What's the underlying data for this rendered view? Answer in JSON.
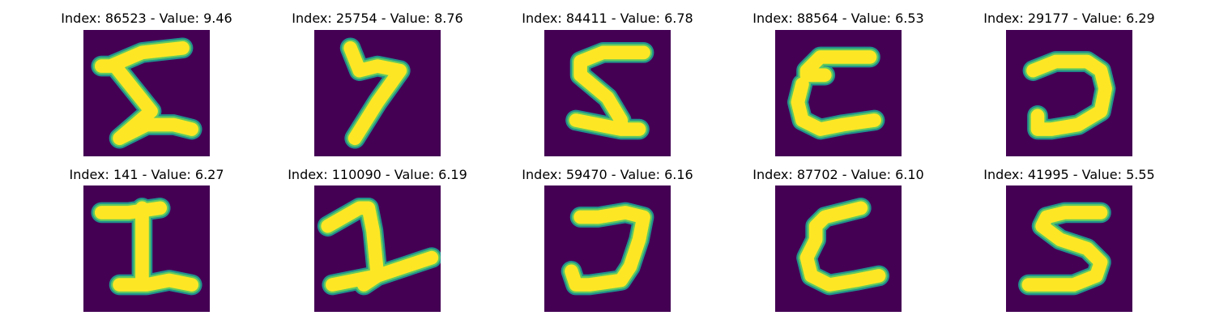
{
  "colors": {
    "background": "#440154",
    "stroke_edge": "#21918c",
    "stroke_mid": "#5ec962",
    "stroke_core": "#fde725"
  },
  "panels": [
    {
      "title": "Index: 86523 - Value: 9.46",
      "index": 86523,
      "value": 9.46
    },
    {
      "title": "Index: 25754 - Value: 8.76",
      "index": 25754,
      "value": 8.76
    },
    {
      "title": "Index: 84411 - Value: 6.78",
      "index": 84411,
      "value": 6.78
    },
    {
      "title": "Index: 88564 - Value: 6.53",
      "index": 88564,
      "value": 6.53
    },
    {
      "title": "Index: 29177 - Value: 6.29",
      "index": 29177,
      "value": 6.29
    },
    {
      "title": "Index: 141 - Value: 6.27",
      "index": 141,
      "value": 6.27
    },
    {
      "title": "Index: 110090 - Value: 6.19",
      "index": 110090,
      "value": 6.19
    },
    {
      "title": "Index: 59470 - Value: 6.16",
      "index": 59470,
      "value": 6.16
    },
    {
      "title": "Index: 87702 - Value: 6.10",
      "index": 87702,
      "value": 6.1
    },
    {
      "title": "Index: 41995 - Value: 5.55",
      "index": 41995,
      "value": 5.55
    }
  ]
}
